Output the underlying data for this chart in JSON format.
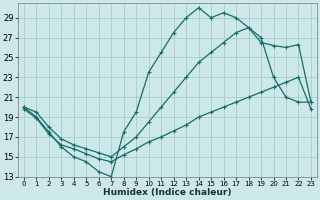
{
  "xlabel": "Humidex (Indice chaleur)",
  "bg_color": "#cce8e8",
  "grid_color": "#aacccc",
  "line_color": "#1a6b6b",
  "xlim": [
    -0.5,
    23.5
  ],
  "ylim": [
    13,
    30
  ],
  "yticks": [
    13,
    15,
    17,
    19,
    21,
    23,
    25,
    27,
    29
  ],
  "xticks": [
    0,
    1,
    2,
    3,
    4,
    5,
    6,
    7,
    8,
    9,
    10,
    11,
    12,
    13,
    14,
    15,
    16,
    17,
    18,
    19,
    20,
    21,
    22,
    23
  ],
  "line1_x": [
    0,
    1,
    2,
    3,
    4,
    5,
    6,
    7,
    8,
    9,
    10,
    11,
    12,
    13,
    14,
    15,
    16,
    17,
    18,
    19,
    20,
    21,
    22,
    23
  ],
  "line1_y": [
    20,
    19,
    17.5,
    16,
    15,
    14.5,
    13.5,
    13,
    17.5,
    19.5,
    23.5,
    25.5,
    27.5,
    29,
    30,
    29,
    29.5,
    29,
    28,
    27,
    23,
    21,
    20.5,
    20.5
  ],
  "line2_x": [
    0,
    1,
    2,
    3,
    4,
    5,
    6,
    7,
    8,
    9,
    10,
    11,
    12,
    13,
    14,
    15,
    16,
    17,
    18,
    19,
    20,
    21,
    22,
    23
  ],
  "line2_y": [
    19.8,
    18.9,
    17.3,
    16.2,
    15.8,
    15.3,
    14.8,
    14.5,
    15.2,
    15.8,
    16.5,
    17.0,
    17.6,
    18.2,
    19.0,
    19.5,
    20.0,
    20.5,
    21.0,
    21.5,
    22.0,
    22.5,
    23.0,
    19.8
  ],
  "line3_x": [
    0,
    1,
    2,
    3,
    4,
    5,
    6,
    7,
    8,
    9,
    10,
    11,
    12,
    13,
    14,
    15,
    16,
    17,
    18,
    19,
    20,
    21,
    22,
    23
  ],
  "line3_y": [
    20,
    19.5,
    18,
    16.8,
    16.2,
    15.8,
    15.4,
    15.0,
    16.0,
    17.0,
    18.5,
    20.0,
    21.5,
    23.0,
    24.5,
    25.5,
    26.5,
    27.5,
    28.0,
    26.5,
    26.2,
    26.0,
    26.3,
    20.5
  ]
}
